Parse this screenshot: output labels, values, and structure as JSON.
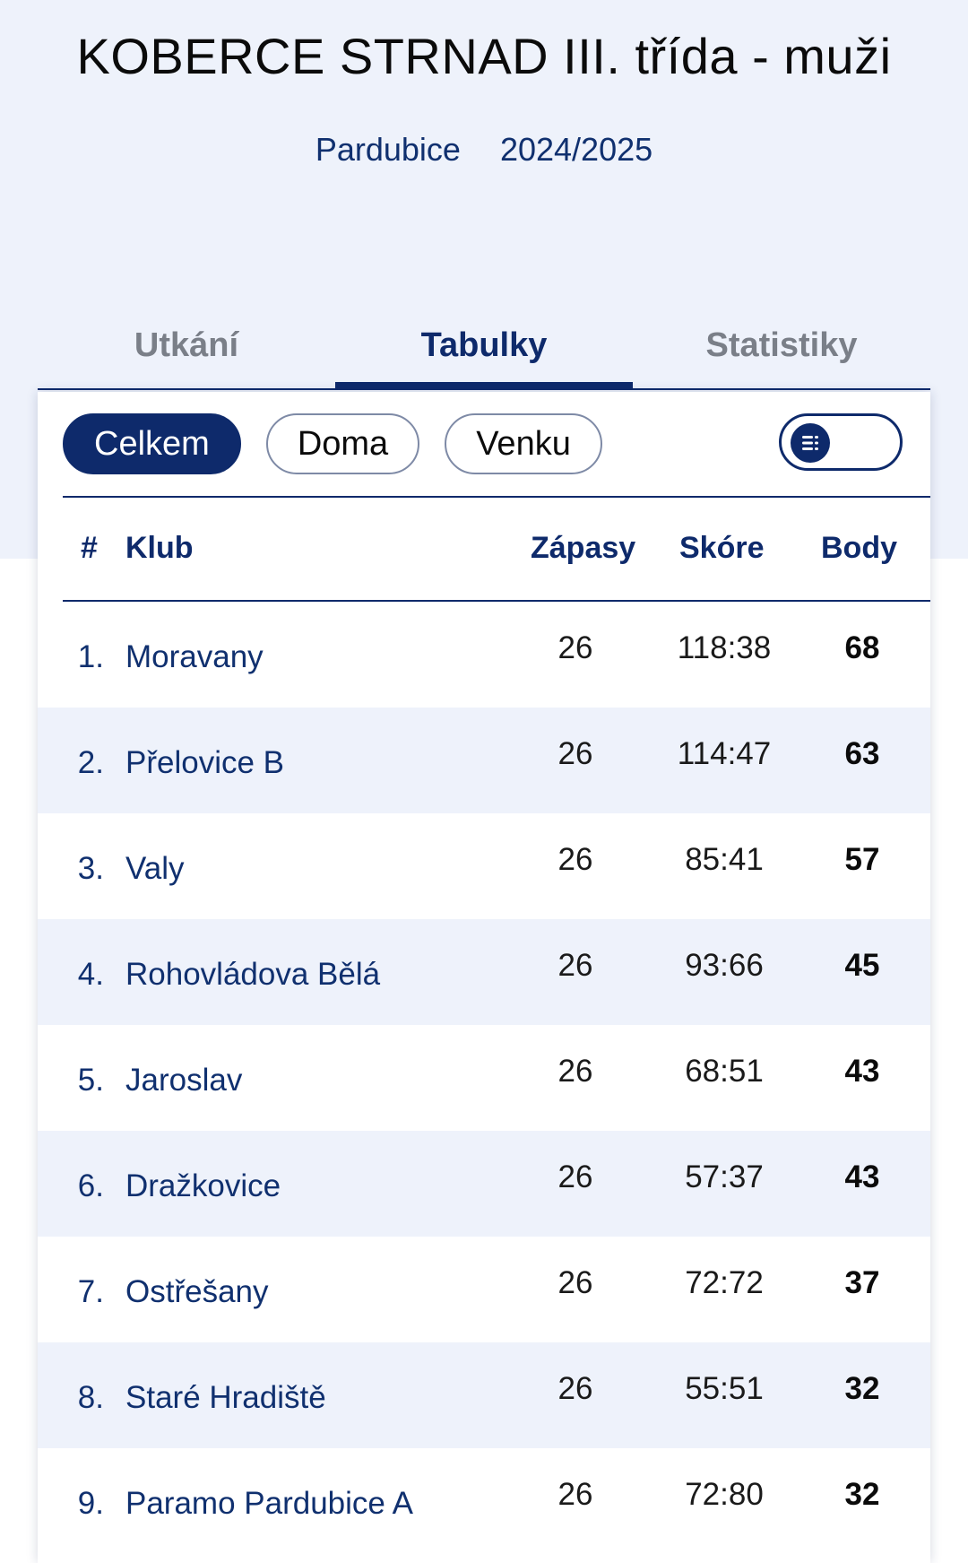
{
  "header": {
    "title": "KOBERCE STRNAD III. třída - muži",
    "region": "Pardubice",
    "season": "2024/2025"
  },
  "tabs": [
    {
      "label": "Utkání",
      "active": false
    },
    {
      "label": "Tabulky",
      "active": true
    },
    {
      "label": "Statistiky",
      "active": false
    }
  ],
  "filters": [
    {
      "label": "Celkem",
      "active": true
    },
    {
      "label": "Doma",
      "active": false
    },
    {
      "label": "Venku",
      "active": false
    }
  ],
  "view_toggle": {
    "icon": "list-icon"
  },
  "table": {
    "headers": {
      "rank": "#",
      "club": "Klub",
      "matches": "Zápasy",
      "score": "Skóre",
      "points": "Body"
    },
    "rows": [
      {
        "rank": "1.",
        "club": "Moravany",
        "matches": "26",
        "score": "118:38",
        "points": "68"
      },
      {
        "rank": "2.",
        "club": "Přelovice B",
        "matches": "26",
        "score": "114:47",
        "points": "63"
      },
      {
        "rank": "3.",
        "club": "Valy",
        "matches": "26",
        "score": "85:41",
        "points": "57"
      },
      {
        "rank": "4.",
        "club": "Rohovládova Bělá",
        "matches": "26",
        "score": "93:66",
        "points": "45"
      },
      {
        "rank": "5.",
        "club": "Jaroslav",
        "matches": "26",
        "score": "68:51",
        "points": "43"
      },
      {
        "rank": "6.",
        "club": "Dražkovice",
        "matches": "26",
        "score": "57:37",
        "points": "43"
      },
      {
        "rank": "7.",
        "club": "Ostřešany",
        "matches": "26",
        "score": "72:72",
        "points": "37"
      },
      {
        "rank": "8.",
        "club": "Staré Hradiště",
        "matches": "26",
        "score": "55:51",
        "points": "32"
      },
      {
        "rank": "9.",
        "club": "Paramo Pardubice A",
        "matches": "26",
        "score": "72:80",
        "points": "32"
      }
    ]
  },
  "colors": {
    "primary": "#0e2a6b",
    "hero_bg": "#eef2fb",
    "alt_row": "#eef2fb"
  }
}
